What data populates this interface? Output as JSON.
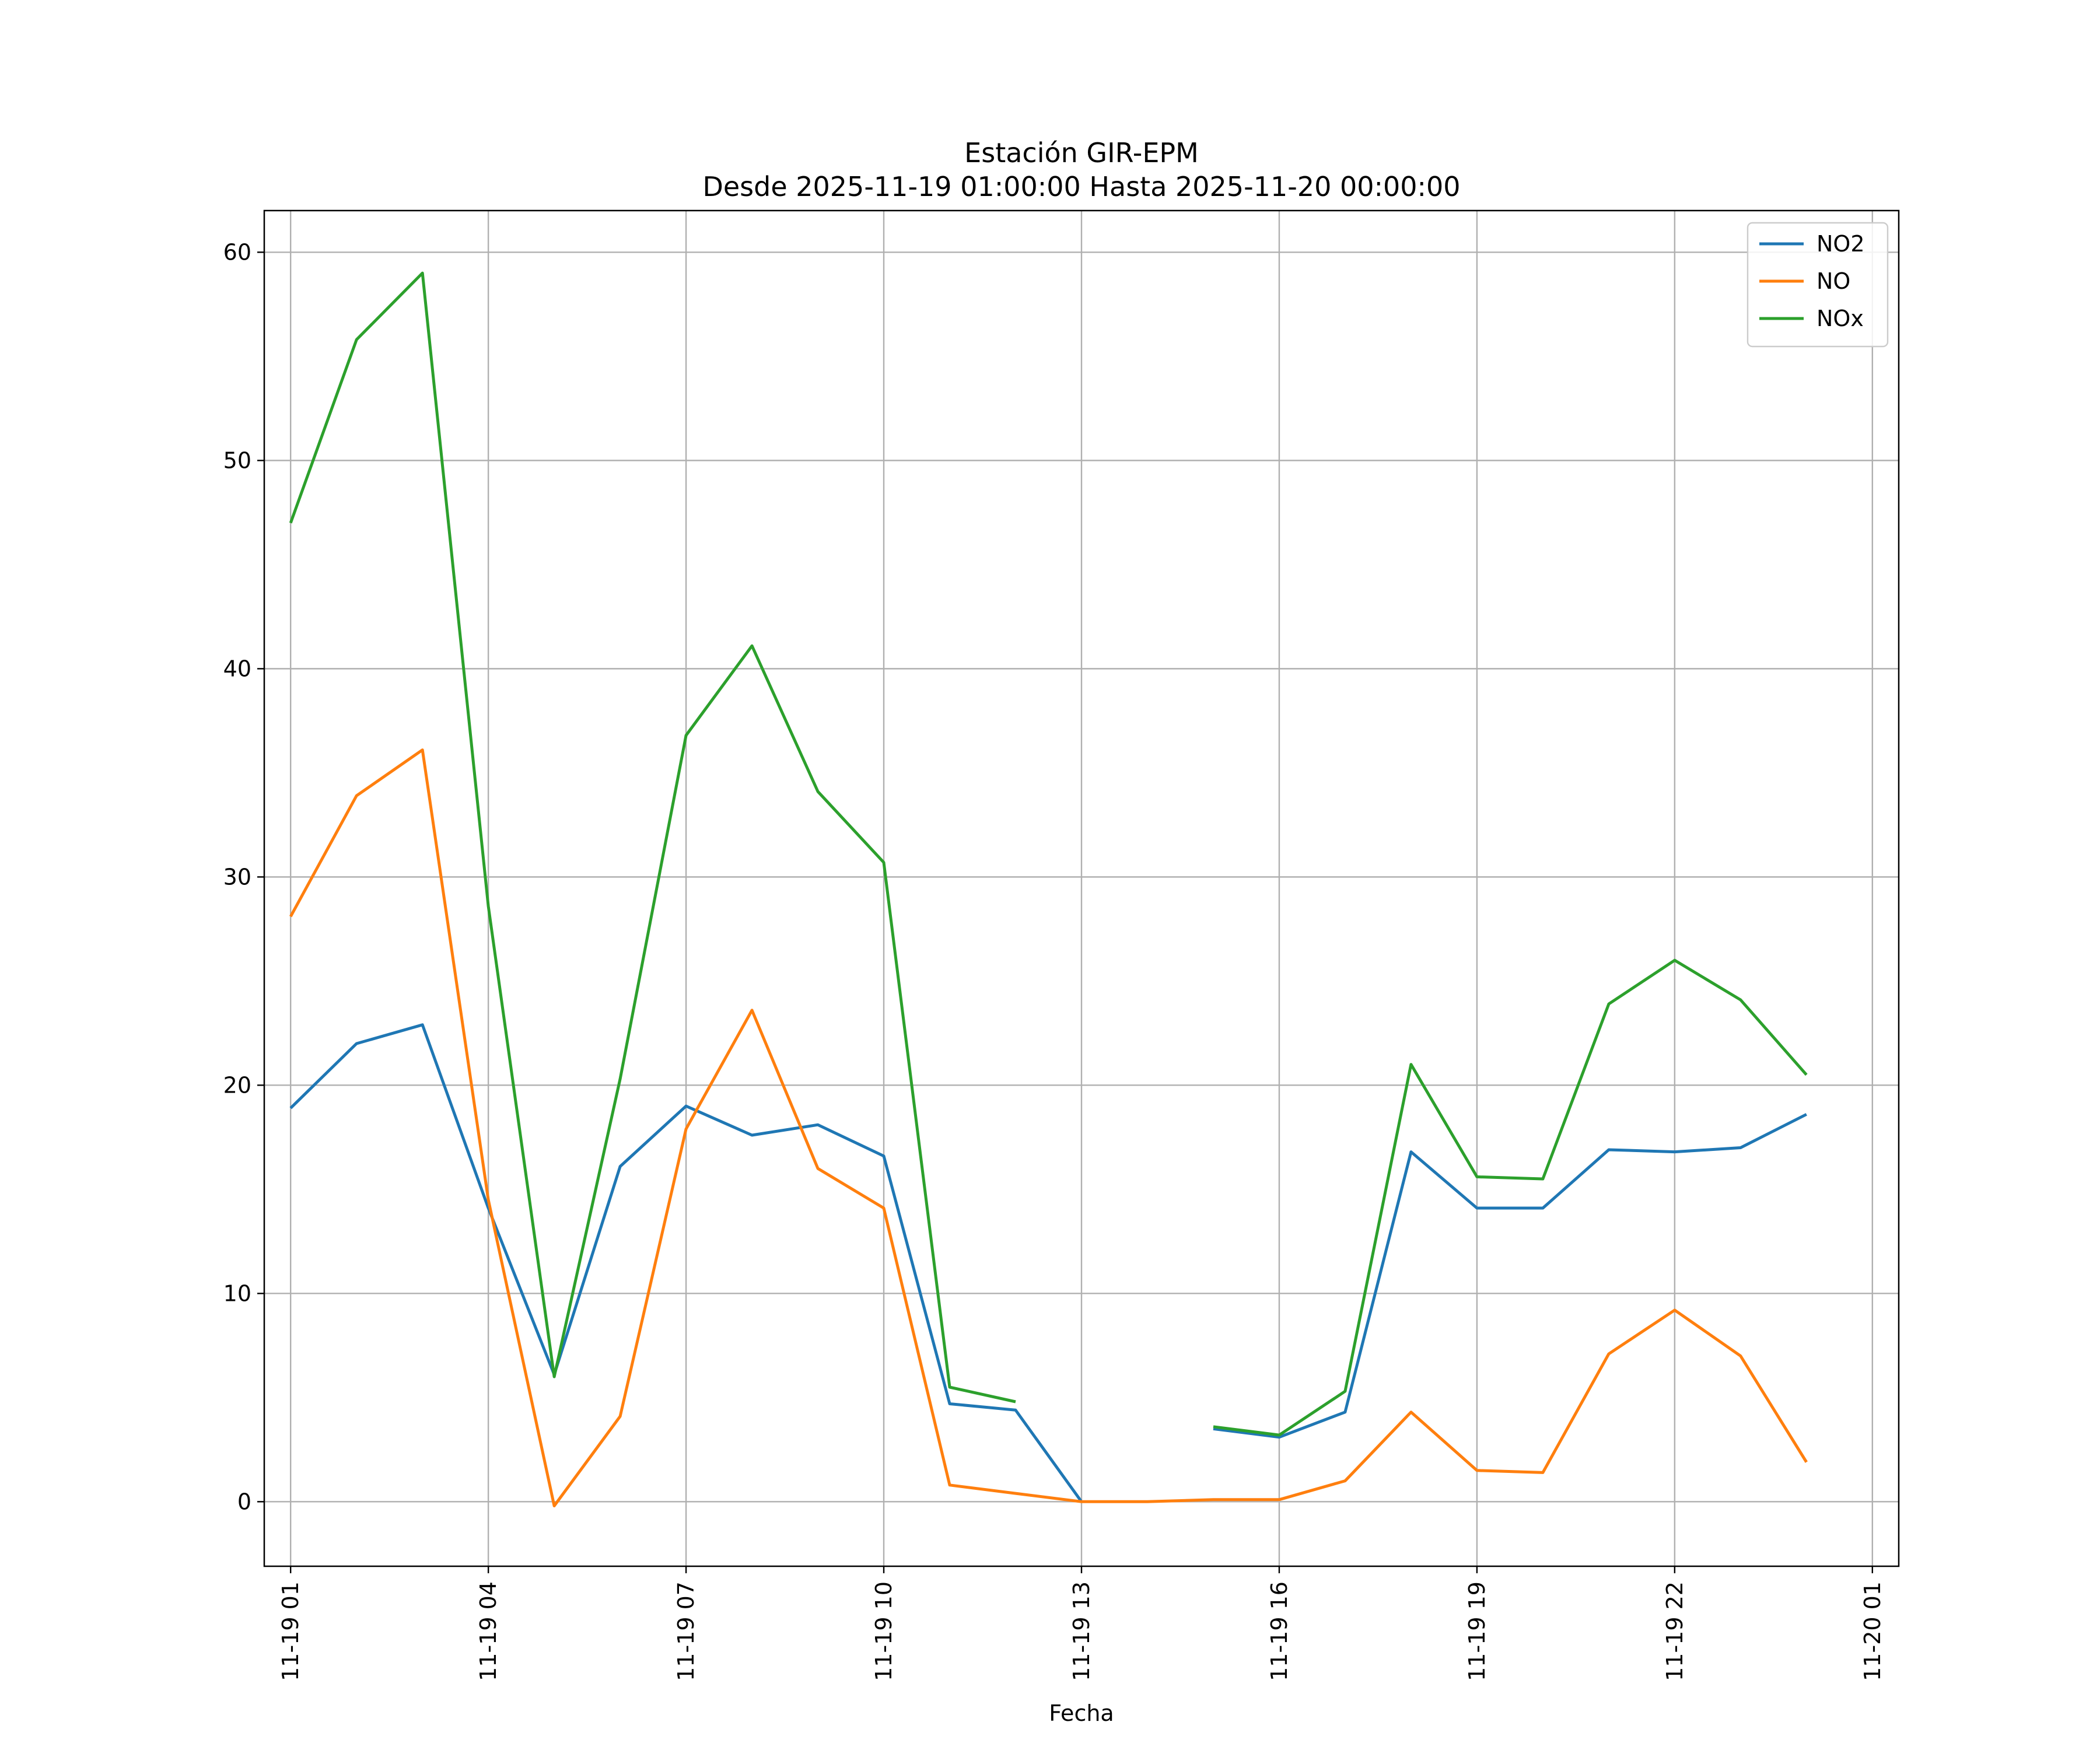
{
  "chart_data": {
    "type": "line",
    "title": "Estación GIR-EPM",
    "subtitle": "Desde 2025-11-19 01:00:00 Hasta 2025-11-20 00:00:00",
    "xlabel": "Fecha",
    "ylabel": "",
    "x": [
      "2025-11-19 01:00",
      "2025-11-19 02:00",
      "2025-11-19 03:00",
      "2025-11-19 04:00",
      "2025-11-19 05:00",
      "2025-11-19 06:00",
      "2025-11-19 07:00",
      "2025-11-19 08:00",
      "2025-11-19 09:00",
      "2025-11-19 10:00",
      "2025-11-19 11:00",
      "2025-11-19 12:00",
      "2025-11-19 13:00",
      "2025-11-19 14:00",
      "2025-11-19 15:00",
      "2025-11-19 16:00",
      "2025-11-19 17:00",
      "2025-11-19 18:00",
      "2025-11-19 19:00",
      "2025-11-19 20:00",
      "2025-11-19 21:00",
      "2025-11-19 22:00",
      "2025-11-19 23:00",
      "2025-11-20 00:00"
    ],
    "xlim": [
      "2025-11-19 00:36",
      "2025-11-20 01:24"
    ],
    "x_ticks": [
      {
        "value": "2025-11-19 01:00",
        "label": "11-19 01"
      },
      {
        "value": "2025-11-19 04:00",
        "label": "11-19 04"
      },
      {
        "value": "2025-11-19 07:00",
        "label": "11-19 07"
      },
      {
        "value": "2025-11-19 10:00",
        "label": "11-19 10"
      },
      {
        "value": "2025-11-19 13:00",
        "label": "11-19 13"
      },
      {
        "value": "2025-11-19 16:00",
        "label": "11-19 16"
      },
      {
        "value": "2025-11-19 19:00",
        "label": "11-19 19"
      },
      {
        "value": "2025-11-19 22:00",
        "label": "11-19 22"
      },
      {
        "value": "2025-11-20 01:00",
        "label": "11-20 01"
      }
    ],
    "ylim": [
      -3.1,
      62
    ],
    "y_ticks": [
      0,
      10,
      20,
      30,
      40,
      50,
      60
    ],
    "grid": true,
    "legend_position": "top-right",
    "series": [
      {
        "name": "NO2",
        "color": "#1f77b4",
        "values": [
          18.9,
          22.0,
          22.9,
          14.1,
          6.1,
          16.1,
          19.0,
          17.6,
          18.1,
          16.6,
          4.7,
          4.4,
          0.0,
          null,
          3.5,
          3.1,
          4.3,
          16.8,
          14.1,
          14.1,
          16.9,
          16.8,
          17.0,
          18.6
        ]
      },
      {
        "name": "NO",
        "color": "#ff7f0e",
        "values": [
          28.1,
          33.9,
          36.1,
          14.5,
          -0.2,
          4.1,
          17.9,
          23.6,
          16.0,
          14.1,
          0.8,
          0.4,
          0.0,
          0.0,
          0.1,
          0.1,
          1.0,
          4.3,
          1.5,
          1.4,
          7.1,
          9.2,
          7.0,
          1.9
        ]
      },
      {
        "name": "NOx",
        "color": "#2ca02c",
        "values": [
          47.0,
          55.8,
          59.0,
          28.6,
          6.0,
          20.3,
          36.8,
          41.1,
          34.1,
          30.7,
          5.5,
          4.8,
          null,
          null,
          3.6,
          3.2,
          5.3,
          21.0,
          15.6,
          15.5,
          23.9,
          26.0,
          24.1,
          20.5
        ]
      }
    ]
  }
}
